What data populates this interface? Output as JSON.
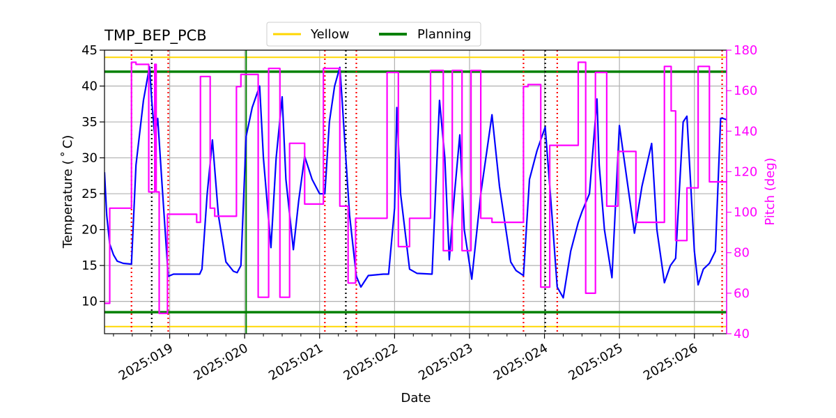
{
  "chart_data": {
    "type": "line",
    "title": "TMP_BEP_PCB",
    "xlabel": "Date",
    "ylabel_left": "Temperature ($^\\circ$C)",
    "ylabel_left_display": "Temperature ( ˚ C)",
    "ylabel_right": "Pitch (deg)",
    "xlim": [
      18.13,
      26.43
    ],
    "ylim_left": [
      5.5,
      45
    ],
    "ylim_right": [
      40,
      180
    ],
    "x_ticks": [
      {
        "value": 19,
        "label": "2025:019"
      },
      {
        "value": 20,
        "label": "2025:020"
      },
      {
        "value": 21,
        "label": "2025:021"
      },
      {
        "value": 22,
        "label": "2025:022"
      },
      {
        "value": 23,
        "label": "2025:023"
      },
      {
        "value": 24,
        "label": "2025:024"
      },
      {
        "value": 25,
        "label": "2025:025"
      },
      {
        "value": 26,
        "label": "2025:026"
      }
    ],
    "y_ticks_left": [
      10,
      15,
      20,
      25,
      30,
      35,
      40,
      45
    ],
    "y_ticks_right": [
      40,
      60,
      80,
      100,
      120,
      140,
      160,
      180
    ],
    "grid": true,
    "legend": {
      "placement": "top-center",
      "entries": [
        {
          "name": "Yellow",
          "color": "#FFD700"
        },
        {
          "name": "Planning",
          "color": "#008000"
        }
      ]
    },
    "limits": {
      "yellow": [
        6.5,
        44.0
      ],
      "planning": [
        8.5,
        42.0
      ]
    },
    "colors": {
      "temperature": "#0000ff",
      "pitch": "#ff00ff",
      "yellow": "#FFD700",
      "planning": "#008000",
      "red_marker": "#ff0000",
      "black_marker": "#000000",
      "grid": "#b0b0b0",
      "pitch_axis": "#ff00ff"
    },
    "green_vertical": 20.02,
    "red_markers": [
      18.49,
      18.98,
      21.07,
      21.49,
      23.72,
      24.17,
      26.37
    ],
    "black_markers": [
      18.76,
      21.35,
      24.01
    ],
    "series": [
      {
        "name": "TMP_BEP_PCB",
        "axis": "left",
        "color": "#0000ff",
        "x": [
          18.13,
          18.16,
          18.2,
          18.25,
          18.3,
          18.38,
          18.49,
          18.55,
          18.65,
          18.73,
          18.76,
          18.8,
          18.84,
          18.9,
          18.98,
          19.05,
          19.2,
          19.4,
          19.43,
          19.5,
          19.57,
          19.65,
          19.75,
          19.85,
          19.9,
          19.95,
          20.02,
          20.1,
          20.2,
          20.25,
          20.35,
          20.42,
          20.5,
          20.55,
          20.65,
          20.72,
          20.8,
          20.9,
          21.0,
          21.07,
          21.13,
          21.2,
          21.27,
          21.3,
          21.35,
          21.4,
          21.49,
          21.55,
          21.65,
          21.85,
          21.92,
          22.0,
          22.03,
          22.08,
          22.2,
          22.3,
          22.5,
          22.6,
          22.67,
          22.73,
          22.8,
          22.87,
          22.93,
          23.03,
          23.15,
          23.3,
          23.4,
          23.55,
          23.62,
          23.72,
          23.8,
          23.9,
          24.01,
          24.1,
          24.17,
          24.25,
          24.35,
          24.45,
          24.5,
          24.6,
          24.7,
          24.73,
          24.8,
          24.9,
          25.0,
          25.1,
          25.2,
          25.3,
          25.43,
          25.5,
          25.6,
          25.68,
          25.75,
          25.85,
          25.9,
          26.0,
          26.05,
          26.12,
          26.2,
          26.28,
          26.35,
          26.38,
          26.43
        ],
        "values": [
          28,
          22,
          18,
          16.5,
          15.6,
          15.3,
          15.2,
          29,
          38,
          42.7,
          38,
          33,
          35.5,
          26,
          13.5,
          13.8,
          13.8,
          13.8,
          14.5,
          25,
          32.5,
          22,
          15.5,
          14.2,
          14.0,
          15,
          33,
          37,
          40,
          30,
          17.5,
          30,
          38.5,
          27,
          17.2,
          24,
          30.2,
          27,
          25,
          25,
          35,
          40,
          42.6,
          38,
          30,
          22,
          13.5,
          12.0,
          13.6,
          13.8,
          13.8,
          23,
          37,
          25,
          14.5,
          13.9,
          13.8,
          38,
          30,
          15.8,
          25,
          33.2,
          20,
          13.1,
          25,
          36,
          26,
          15.5,
          14.3,
          13.6,
          27,
          31,
          34.3,
          22,
          12,
          10.5,
          17,
          21,
          22.5,
          25,
          38.2,
          29,
          20,
          13.3,
          34.5,
          27,
          19.5,
          26,
          32,
          20,
          12.6,
          15,
          16,
          35,
          35.8,
          17,
          12.3,
          14.5,
          15.3,
          17,
          35.5,
          35.5,
          35.3
        ]
      },
      {
        "name": "Pitch",
        "axis": "right",
        "color": "#ff00ff",
        "x": [
          18.13,
          18.2,
          18.2,
          18.49,
          18.49,
          18.55,
          18.55,
          18.72,
          18.72,
          18.8,
          18.8,
          18.82,
          18.82,
          18.86,
          18.86,
          18.97,
          18.97,
          19.36,
          19.36,
          19.41,
          19.41,
          19.54,
          19.54,
          19.6,
          19.6,
          19.89,
          19.89,
          19.95,
          19.95,
          20.05,
          20.05,
          20.18,
          20.18,
          20.32,
          20.32,
          20.47,
          20.47,
          20.6,
          20.6,
          20.8,
          20.8,
          20.99,
          20.99,
          21.05,
          21.05,
          21.27,
          21.27,
          21.38,
          21.38,
          21.48,
          21.48,
          21.84,
          21.84,
          21.9,
          21.9,
          22.05,
          22.05,
          22.2,
          22.2,
          22.23,
          22.23,
          22.48,
          22.48,
          22.65,
          22.65,
          22.77,
          22.77,
          22.9,
          22.9,
          23.02,
          23.02,
          23.15,
          23.15,
          23.3,
          23.3,
          23.5,
          23.5,
          23.72,
          23.72,
          23.78,
          23.78,
          23.95,
          23.95,
          24.07,
          24.07,
          24.17,
          24.17,
          24.45,
          24.45,
          24.55,
          24.55,
          24.68,
          24.68,
          24.83,
          24.83,
          24.98,
          24.98,
          25.22,
          25.22,
          25.43,
          25.43,
          25.6,
          25.6,
          25.69,
          25.69,
          25.75,
          25.75,
          25.86,
          25.86,
          25.9,
          25.9,
          26.05,
          26.05,
          26.2,
          26.2,
          26.32,
          26.32,
          26.43
        ],
        "values": [
          55,
          55,
          102,
          102,
          174,
          174,
          173,
          173,
          110,
          110,
          173,
          173,
          110,
          110,
          50,
          50,
          99,
          99,
          95,
          95,
          167,
          167,
          102,
          102,
          98,
          98,
          162,
          162,
          168,
          168,
          168,
          168,
          58,
          58,
          171,
          171,
          58,
          58,
          134,
          134,
          104,
          104,
          104,
          104,
          171,
          171,
          103,
          103,
          65,
          65,
          97,
          97,
          97,
          97,
          169,
          169,
          83,
          83,
          97,
          97,
          97,
          97,
          170,
          170,
          81,
          81,
          170,
          170,
          81,
          81,
          170,
          170,
          97,
          97,
          95,
          95,
          95,
          95,
          162,
          162,
          163,
          163,
          63,
          63,
          133,
          133,
          133,
          133,
          174,
          174,
          60,
          60,
          169,
          169,
          103,
          103,
          130,
          130,
          95,
          95,
          95,
          95,
          172,
          172,
          150,
          150,
          86,
          86,
          86,
          86,
          112,
          112,
          172,
          172,
          115,
          115,
          115,
          115
        ]
      }
    ]
  }
}
